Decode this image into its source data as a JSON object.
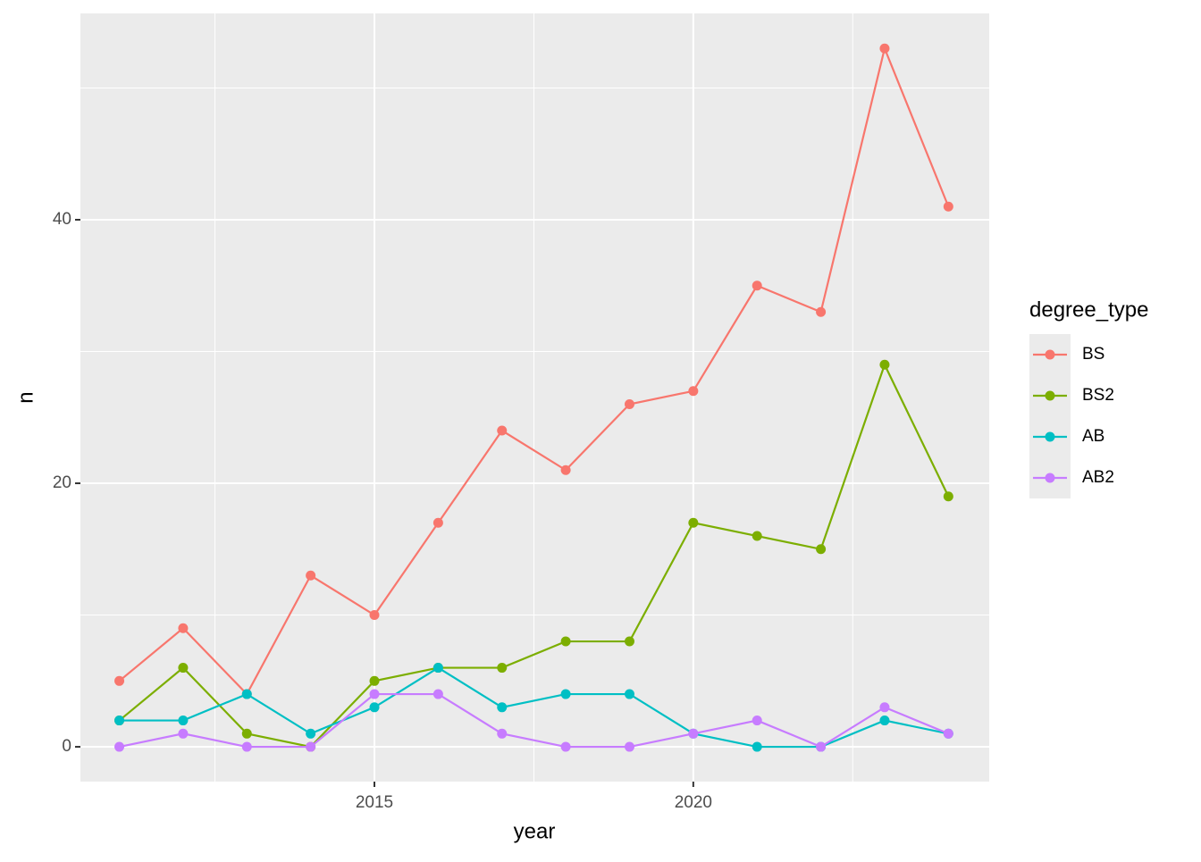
{
  "chart_data": {
    "type": "line",
    "x": [
      2011,
      2012,
      2013,
      2014,
      2015,
      2016,
      2017,
      2018,
      2019,
      2020,
      2021,
      2022,
      2023,
      2024
    ],
    "series": [
      {
        "name": "BS",
        "color": "#F8766D",
        "values": [
          5,
          9,
          4,
          13,
          10,
          17,
          24,
          21,
          26,
          27,
          35,
          33,
          53,
          41
        ]
      },
      {
        "name": "BS2",
        "color": "#7CAE00",
        "values": [
          2,
          6,
          1,
          0,
          5,
          6,
          6,
          8,
          8,
          17,
          16,
          15,
          29,
          19
        ]
      },
      {
        "name": "AB",
        "color": "#00BFC4",
        "values": [
          2,
          2,
          4,
          1,
          3,
          6,
          3,
          4,
          4,
          1,
          0,
          0,
          2,
          1
        ]
      },
      {
        "name": "AB2",
        "color": "#C77CFF",
        "values": [
          0,
          1,
          0,
          0,
          4,
          4,
          1,
          0,
          0,
          1,
          2,
          0,
          3,
          1
        ]
      }
    ],
    "xlabel": "year",
    "ylabel": "n",
    "legend_title": "degree_type",
    "xlim": [
      2010.39,
      2024.64
    ],
    "ylim": [
      -2.64,
      55.66
    ],
    "xticks": [
      2015,
      2020
    ],
    "yticks": [
      0,
      20,
      40
    ],
    "xminor": [
      2012.5,
      2017.5,
      2022.5
    ],
    "yminor": [
      10,
      30,
      50
    ],
    "grid": true,
    "legend": "right"
  }
}
